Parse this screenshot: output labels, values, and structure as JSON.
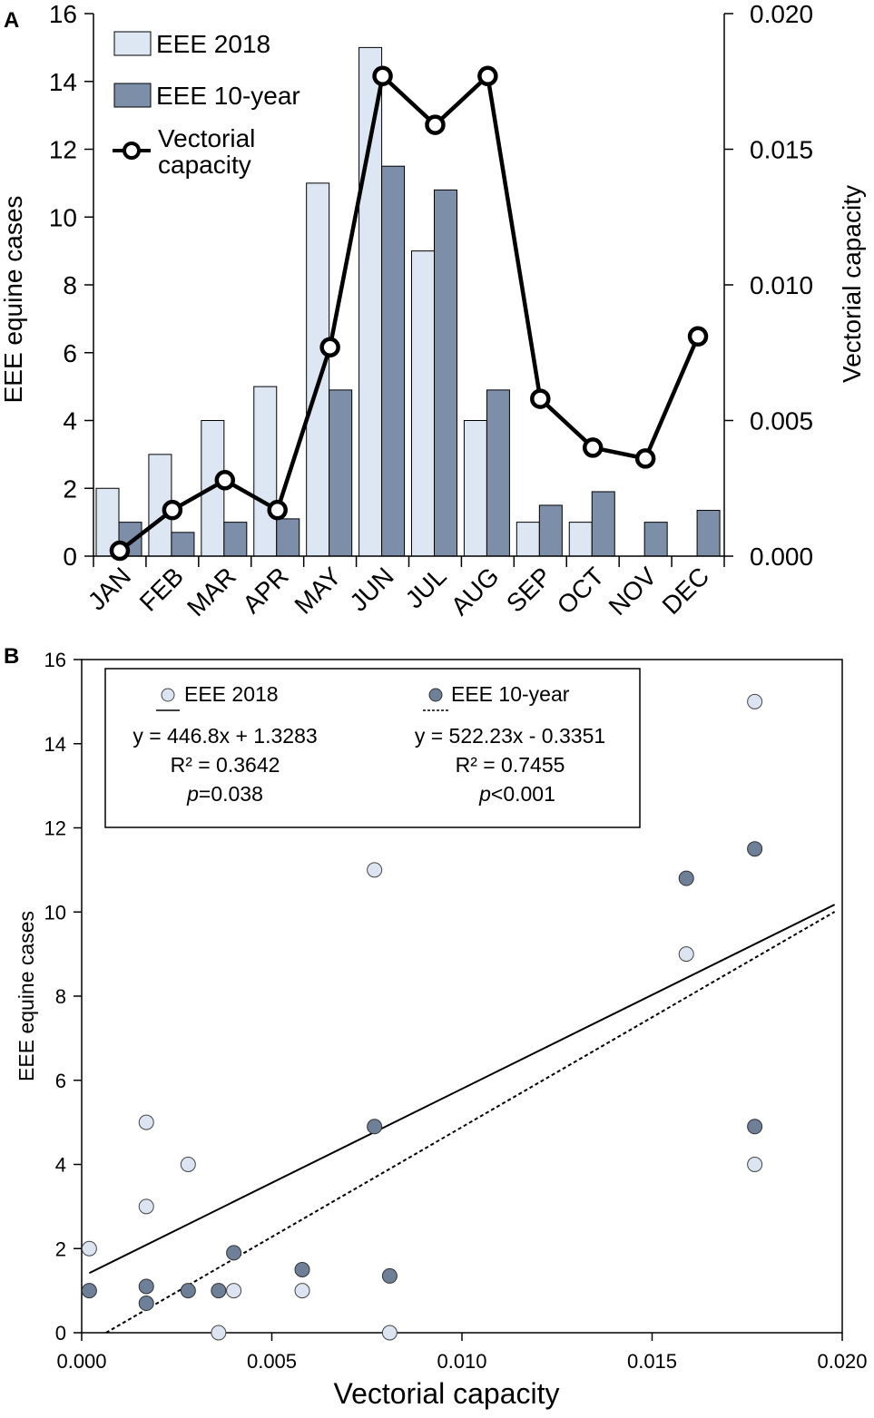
{
  "panel_labels": {
    "a": "A",
    "b": "B"
  },
  "colors": {
    "light_bar": "#dde6f3",
    "dark_bar": "#7d8fa8",
    "line": "#000000",
    "light_point": "#dce4f2",
    "dark_point": "#6e7f98"
  },
  "chart_data": [
    {
      "type": "bar",
      "panel": "A",
      "categories": [
        "JAN",
        "FEB",
        "MAR",
        "APR",
        "MAY",
        "JUN",
        "JUL",
        "AUG",
        "SEP",
        "OCT",
        "NOV",
        "DEC"
      ],
      "series": [
        {
          "name": "EEE 2018",
          "values": [
            2,
            3,
            4,
            5,
            11,
            15,
            9,
            4,
            1,
            1,
            0,
            0
          ]
        },
        {
          "name": "EEE 10-year",
          "values": [
            1,
            0.7,
            1,
            1.1,
            4.9,
            11.5,
            10.8,
            4.9,
            1.5,
            1.9,
            1,
            1.35
          ]
        },
        {
          "name": "Vectorial capacity",
          "axis": "right",
          "values": [
            0.0002,
            0.0017,
            0.0028,
            0.0017,
            0.0077,
            0.0177,
            0.0159,
            0.0177,
            0.0058,
            0.004,
            0.0036,
            0.0081
          ]
        }
      ],
      "ylabel": "EEE equine cases",
      "y2label": "Vectorial capacity",
      "ylim": [
        0,
        16
      ],
      "y2lim": [
        0,
        0.02
      ],
      "yticks": [
        "0",
        "2",
        "4",
        "6",
        "8",
        "10",
        "12",
        "14",
        "16"
      ],
      "y2ticks": [
        "0.000",
        "0.005",
        "0.010",
        "0.015",
        "0.020"
      ],
      "legend": [
        {
          "label": "EEE 2018"
        },
        {
          "label": "EEE 10-year"
        },
        {
          "label": "Vectorial capacity"
        }
      ],
      "legend_position": "top-left"
    },
    {
      "type": "scatter",
      "panel": "B",
      "xlabel": "Vectorial capacity",
      "ylabel": "EEE equine cases",
      "xlim": [
        0,
        0.02
      ],
      "ylim": [
        0,
        16
      ],
      "xticks": [
        "0.000",
        "0.005",
        "0.010",
        "0.015",
        "0.020"
      ],
      "yticks": [
        "0",
        "2",
        "4",
        "6",
        "8",
        "10",
        "12",
        "14",
        "16"
      ],
      "series": [
        {
          "name": "EEE 2018",
          "x": [
            0.0002,
            0.0017,
            0.0028,
            0.0017,
            0.0077,
            0.0177,
            0.0159,
            0.0177,
            0.0058,
            0.004,
            0.0036,
            0.0081
          ],
          "y": [
            2,
            3,
            4,
            5,
            11,
            15,
            9,
            4,
            1,
            1,
            0,
            0
          ],
          "fit": {
            "slope": 446.8,
            "intercept": 1.3283,
            "style": "solid"
          }
        },
        {
          "name": "EEE 10-year",
          "x": [
            0.0002,
            0.0017,
            0.0028,
            0.0017,
            0.0077,
            0.0177,
            0.0159,
            0.0177,
            0.0058,
            0.004,
            0.0036,
            0.0081
          ],
          "y": [
            1,
            0.7,
            1,
            1.1,
            4.9,
            11.5,
            10.8,
            4.9,
            1.5,
            1.9,
            1,
            1.35
          ],
          "fit": {
            "slope": 522.23,
            "intercept": -0.3351,
            "style": "dotted"
          }
        }
      ],
      "legend": {
        "left": {
          "name": "EEE 2018",
          "equation": "y = 446.8x + 1.3283",
          "r2": "R² = 0.3642",
          "p_symbol": "p",
          "p_value": "=0.038"
        },
        "right": {
          "name": "EEE 10-year",
          "equation": "y = 522.23x - 0.3351",
          "r2": "R² = 0.7455",
          "p_symbol": "p",
          "p_value": "<0.001"
        }
      },
      "legend_position": "top-left"
    }
  ]
}
